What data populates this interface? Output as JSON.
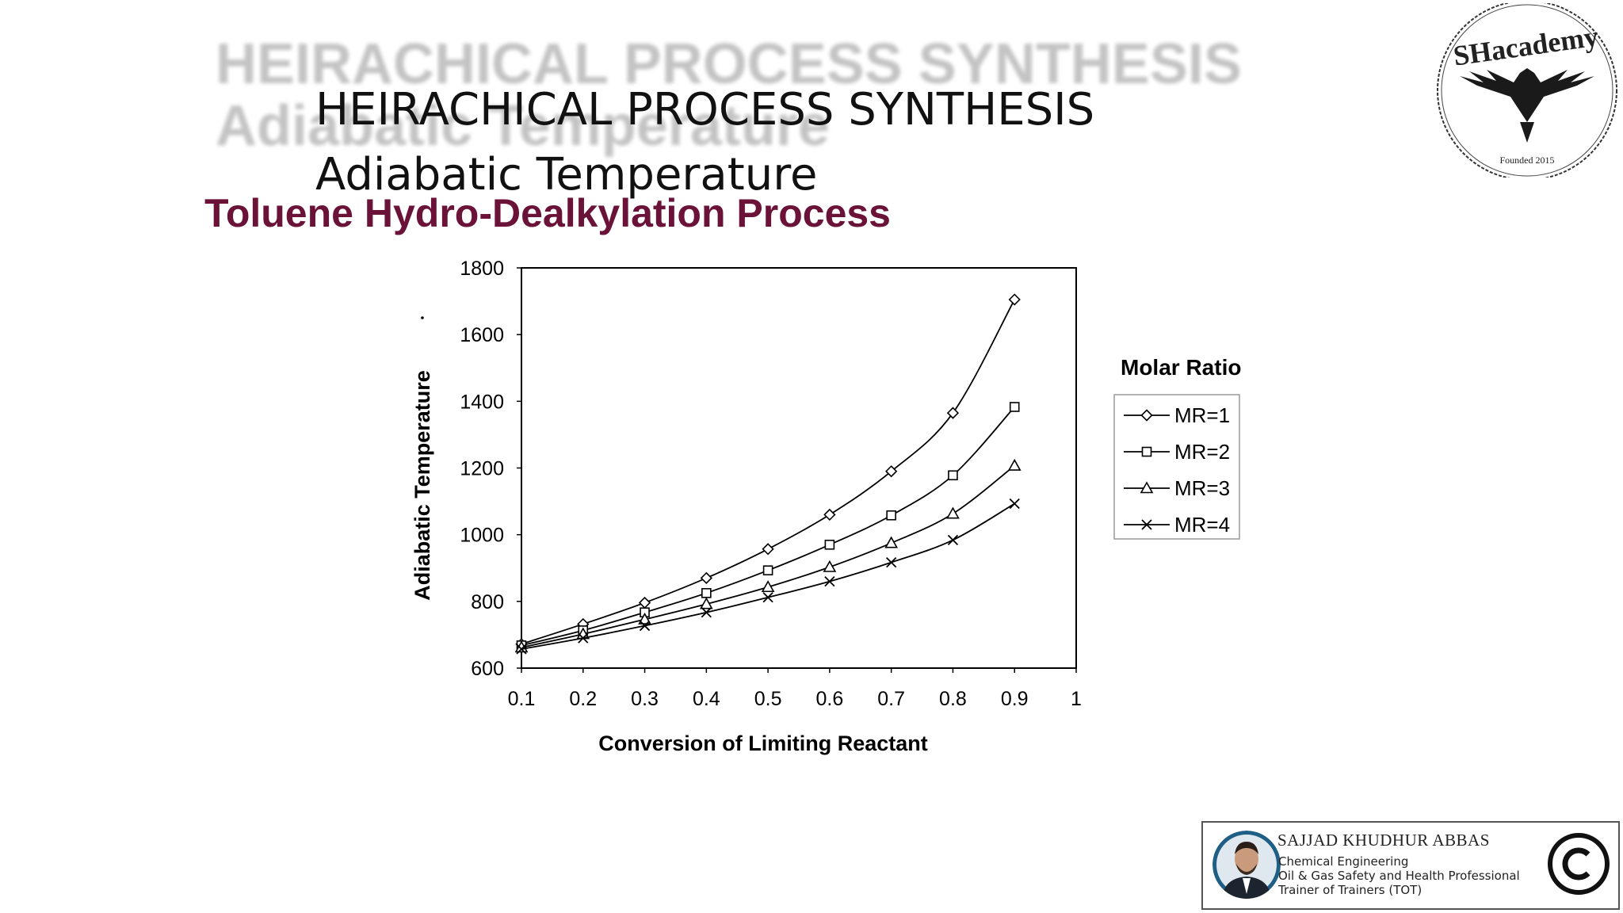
{
  "slide": {
    "ghost_title_line1": "HEIRACHICAL PROCESS SYNTHESIS",
    "ghost_title_line2": "Adiabatic Temperature",
    "title_line1": "HEIRACHICAL PROCESS SYNTHESIS",
    "title_line2": "Adiabatic Temperature",
    "process_name": "Toluene Hydro-Dealkylation Process"
  },
  "logo": {
    "text": "SHacademy",
    "founded": "Founded 2015",
    "accent_color": "#c0392b"
  },
  "author": {
    "name": "SAJJAD KHUDHUR ABBAS",
    "line1": "Chemical Engineering",
    "line2": "Oil & Gas Safety and Health Professional",
    "line3": "Trainer of Trainers (TOT)",
    "copyright_symbol": "©"
  },
  "chart_data": {
    "type": "line",
    "title": "",
    "xlabel": "Conversion of Limiting Reactant",
    "ylabel": "Adiabatic Temperature",
    "xlim": [
      0.1,
      1
    ],
    "ylim": [
      600,
      1800
    ],
    "x_ticks": [
      "0.1",
      "0.2",
      "0.3",
      "0.4",
      "0.5",
      "0.6",
      "0.7",
      "0.8",
      "0.9",
      "1"
    ],
    "y_ticks": [
      "600",
      "800",
      "1000",
      "1200",
      "1400",
      "1600",
      "1800"
    ],
    "grid": false,
    "legend_title": "Molar Ratio",
    "legend_position": "right",
    "x": [
      0.1,
      0.2,
      0.3,
      0.4,
      0.5,
      0.6,
      0.7,
      0.8,
      0.9
    ],
    "series": [
      {
        "name": "MR=1",
        "marker": "diamond",
        "values": [
          672,
          732,
          796,
          870,
          957,
          1060,
          1190,
          1365,
          1705
        ]
      },
      {
        "name": "MR=2",
        "marker": "square",
        "values": [
          668,
          713,
          767,
          825,
          893,
          970,
          1058,
          1178,
          1383
        ]
      },
      {
        "name": "MR=3",
        "marker": "triangle",
        "values": [
          662,
          702,
          746,
          792,
          843,
          903,
          975,
          1063,
          1207
        ]
      },
      {
        "name": "MR=4",
        "marker": "x",
        "values": [
          657,
          690,
          727,
          767,
          812,
          860,
          917,
          984,
          1093
        ]
      }
    ]
  }
}
